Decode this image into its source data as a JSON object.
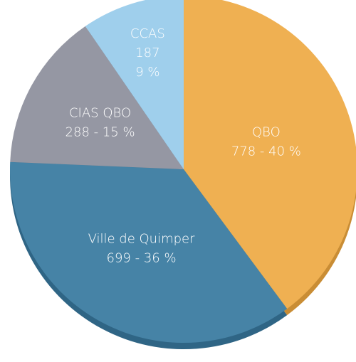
{
  "chart_data": {
    "type": "pie",
    "categories": [
      "QBO",
      "Ville de Quimper",
      "CIAS QBO",
      "CCAS"
    ],
    "values": [
      778,
      699,
      288,
      187
    ],
    "value_labels": [
      [
        "778 - 40 %"
      ],
      [
        "699 - 36 %"
      ],
      [
        "288 - 15 %"
      ],
      [
        "187",
        "9 %"
      ]
    ],
    "colors": [
      "#efb052",
      "#4683a6",
      "#9597a3",
      "#9fcfec"
    ],
    "side_colors": [
      "#c98d35",
      "#2f6585",
      "#72747f",
      "#7aaecd"
    ]
  }
}
